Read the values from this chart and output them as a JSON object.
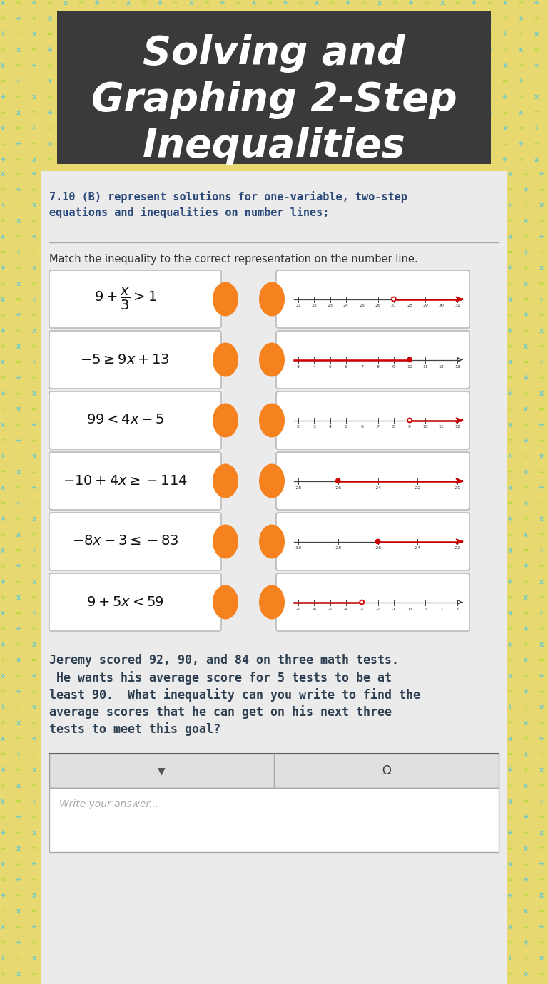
{
  "title_line1": "Solving and",
  "title_line2": "Graphing 2-Step",
  "title_line3": "Inequalities",
  "title_bg": "#3a3a3a",
  "title_text_color": "#ffffff",
  "pattern_bg": "#e8d870",
  "pattern_color1": "#5bc8d8",
  "pattern_color2": "#b8d840",
  "content_bg": "#ebebeb",
  "orange_color": "#F5821F",
  "red_color": "#cc0000",
  "box_bg": "#ffffff",
  "std_color": "#2c4a7a",
  "wp_color": "#2c3e50",
  "row_data": [
    {
      "ineq": "9 + x/3 > 1",
      "ticks": [
        21,
        22,
        23,
        24,
        25,
        26,
        27,
        28,
        29,
        30,
        31
      ],
      "point": 27,
      "open": true,
      "dir": "right"
    },
    {
      "ineq": "-5 >= 9x + 13",
      "ticks": [
        3,
        4,
        5,
        6,
        7,
        8,
        9,
        10,
        11,
        12,
        13
      ],
      "point": 10,
      "open": false,
      "dir": "left"
    },
    {
      "ineq": "99 < 4x - 5",
      "ticks": [
        2,
        3,
        4,
        5,
        6,
        7,
        8,
        9,
        10,
        11,
        12
      ],
      "point": 9,
      "open": true,
      "dir": "right"
    },
    {
      "ineq": "-10 + 4x >= -114",
      "ticks": [
        -28,
        -26,
        -24,
        -22,
        -20
      ],
      "point": -26,
      "open": false,
      "dir": "right"
    },
    {
      "ineq": "-8x - 3 <= -83",
      "ticks": [
        -30,
        -28,
        -26,
        -24,
        -22
      ],
      "point": -26,
      "open": false,
      "dir": "right"
    },
    {
      "ineq": "9 + 5x < 59",
      "ticks": [
        -7,
        -6,
        -5,
        -4,
        -3,
        -2,
        -1,
        0,
        1,
        2,
        3
      ],
      "point": -3,
      "open": true,
      "dir": "left"
    }
  ],
  "answer_placeholder": "Write your answer..."
}
